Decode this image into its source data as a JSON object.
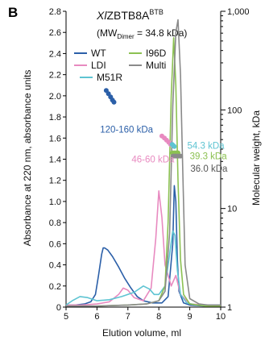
{
  "chart_data": {
    "type": "line",
    "panel_label": "B",
    "title_prefix": "Xl",
    "title_main": "ZBTB8A",
    "title_super": "BTB",
    "subtitle_open": "(MW",
    "subtitle_sub": "Dimer",
    "subtitle_rest": " = 34.8 kDa)",
    "xlabel": "Elution volume, ml",
    "ylabel": "Absorbance at 220 nm, absorbance units",
    "y2label": "Molecular weight, kDa",
    "xlim": [
      5,
      10
    ],
    "ylim": [
      0,
      2.8
    ],
    "y2scale": "log",
    "y2lim": [
      1,
      1000
    ],
    "x_ticks": [
      "5",
      "6",
      "7",
      "8",
      "9",
      "10"
    ],
    "y_ticks": [
      "0",
      "0.2",
      "0.4",
      "0.6",
      "0.8",
      "1.0",
      "1.2",
      "1.4",
      "1.6",
      "1.8",
      "2.0",
      "2.2",
      "2.4",
      "2.6",
      "2.8"
    ],
    "y2_ticks": [
      "1",
      "10",
      "100",
      "1,000"
    ],
    "y2_tick_values": [
      1,
      10,
      100,
      1000
    ],
    "legend": {
      "placement": "top-left",
      "entries": [
        {
          "name": "WT",
          "color": "#2b5fa8"
        },
        {
          "name": "I96D",
          "color": "#8cc152"
        },
        {
          "name": "LDI",
          "color": "#e88ac0"
        },
        {
          "name": "Multi",
          "color": "#8a8a8a"
        },
        {
          "name": "M51R",
          "color": "#5ec4d2"
        }
      ]
    },
    "series": [
      {
        "name": "WT",
        "color": "#2b5fa8",
        "x": [
          5.0,
          5.3,
          5.6,
          5.8,
          5.95,
          6.05,
          6.15,
          6.2,
          6.25,
          6.35,
          6.5,
          6.7,
          6.9,
          7.1,
          7.3,
          7.5,
          7.8,
          8.1,
          8.3,
          8.45,
          8.5,
          8.55,
          8.6,
          8.65,
          8.8,
          9.0,
          9.5,
          10.0
        ],
        "y": [
          0.02,
          0.02,
          0.03,
          0.05,
          0.12,
          0.3,
          0.5,
          0.56,
          0.56,
          0.54,
          0.48,
          0.38,
          0.27,
          0.18,
          0.1,
          0.06,
          0.04,
          0.04,
          0.1,
          0.6,
          1.15,
          1.0,
          0.45,
          0.15,
          0.04,
          0.02,
          0.01,
          0.01
        ]
      },
      {
        "name": "LDI",
        "color": "#e88ac0",
        "x": [
          5.0,
          5.5,
          6.0,
          6.4,
          6.7,
          6.85,
          7.0,
          7.2,
          7.5,
          7.75,
          7.9,
          8.0,
          8.1,
          8.2,
          8.4,
          8.55,
          8.7,
          9.0,
          9.5,
          10.0
        ],
        "y": [
          0.02,
          0.02,
          0.03,
          0.05,
          0.12,
          0.18,
          0.16,
          0.09,
          0.06,
          0.18,
          0.65,
          1.1,
          0.85,
          0.4,
          0.2,
          0.3,
          0.12,
          0.03,
          0.02,
          0.02
        ]
      },
      {
        "name": "M51R",
        "color": "#5ec4d2",
        "x": [
          5.0,
          5.2,
          5.45,
          5.7,
          6.0,
          6.4,
          6.8,
          7.2,
          7.5,
          7.7,
          7.85,
          8.0,
          8.2,
          8.35,
          8.45,
          8.52,
          8.6,
          8.7,
          8.9,
          9.2,
          9.6,
          10.0
        ],
        "y": [
          0.02,
          0.06,
          0.1,
          0.09,
          0.06,
          0.07,
          0.1,
          0.14,
          0.2,
          0.17,
          0.12,
          0.12,
          0.2,
          0.5,
          0.72,
          0.68,
          0.35,
          0.12,
          0.04,
          0.02,
          0.02,
          0.02
        ]
      },
      {
        "name": "I96D",
        "color": "#8cc152",
        "x": [
          5.0,
          6.0,
          7.0,
          7.6,
          8.0,
          8.2,
          8.3,
          8.4,
          8.48,
          8.55,
          8.62,
          8.7,
          8.8,
          9.0,
          9.5,
          10.0
        ],
        "y": [
          0.01,
          0.01,
          0.02,
          0.03,
          0.06,
          0.2,
          0.8,
          2.0,
          2.55,
          2.1,
          1.2,
          0.45,
          0.12,
          0.03,
          0.01,
          0.01
        ]
      },
      {
        "name": "Multi",
        "color": "#8a8a8a",
        "x": [
          5.0,
          6.0,
          7.0,
          7.6,
          8.0,
          8.2,
          8.35,
          8.45,
          8.55,
          8.62,
          8.7,
          8.78,
          8.85,
          9.0,
          9.3,
          9.6,
          10.0
        ],
        "y": [
          0.01,
          0.01,
          0.02,
          0.03,
          0.06,
          0.15,
          0.7,
          1.9,
          2.6,
          2.72,
          2.2,
          1.2,
          0.4,
          0.08,
          0.03,
          0.02,
          0.02
        ]
      }
    ],
    "mw_points": [
      {
        "name": "WT",
        "color": "#2b5fa8",
        "x": [
          6.3,
          6.37,
          6.44,
          6.5,
          6.55
        ],
        "y": [
          2.05,
          2.02,
          1.99,
          1.96,
          1.94
        ]
      },
      {
        "name": "LDI",
        "color": "#e88ac0",
        "x": [
          8.1,
          8.18,
          8.25,
          8.32,
          8.38
        ],
        "y": [
          1.62,
          1.6,
          1.58,
          1.56,
          1.54
        ]
      },
      {
        "name": "M51R",
        "color": "#5ec4d2",
        "x": [
          8.43,
          8.47,
          8.5
        ],
        "y": [
          1.54,
          1.53,
          1.52
        ]
      },
      {
        "name": "I96D",
        "color": "#8cc152",
        "x": [
          8.44,
          8.5,
          8.56,
          8.62
        ],
        "y": [
          1.46,
          1.46,
          1.46,
          1.46
        ]
      },
      {
        "name": "Multi",
        "color": "#8a8a8a",
        "x": [
          8.46,
          8.52,
          8.58,
          8.64,
          8.7
        ],
        "y": [
          1.43,
          1.43,
          1.43,
          1.43,
          1.43
        ]
      }
    ],
    "annotations": [
      {
        "text": "120-160 kDa",
        "color": "#2b5fa8",
        "x": 6.1,
        "y": 1.65,
        "anchor": "start"
      },
      {
        "text": "46-60 kDa",
        "color": "#e88ac0",
        "x": 7.12,
        "y": 1.37,
        "anchor": "start"
      },
      {
        "text": "54.3 kDa",
        "color": "#5ec4d2",
        "x": 8.92,
        "y": 1.5,
        "anchor": "start"
      },
      {
        "text": "39.3 kDa",
        "color": "#8cc152",
        "x": 9.0,
        "y": 1.4,
        "anchor": "start"
      },
      {
        "text": "36.0 kDa",
        "color": "#555555",
        "x": 9.02,
        "y": 1.28,
        "anchor": "start"
      }
    ]
  }
}
